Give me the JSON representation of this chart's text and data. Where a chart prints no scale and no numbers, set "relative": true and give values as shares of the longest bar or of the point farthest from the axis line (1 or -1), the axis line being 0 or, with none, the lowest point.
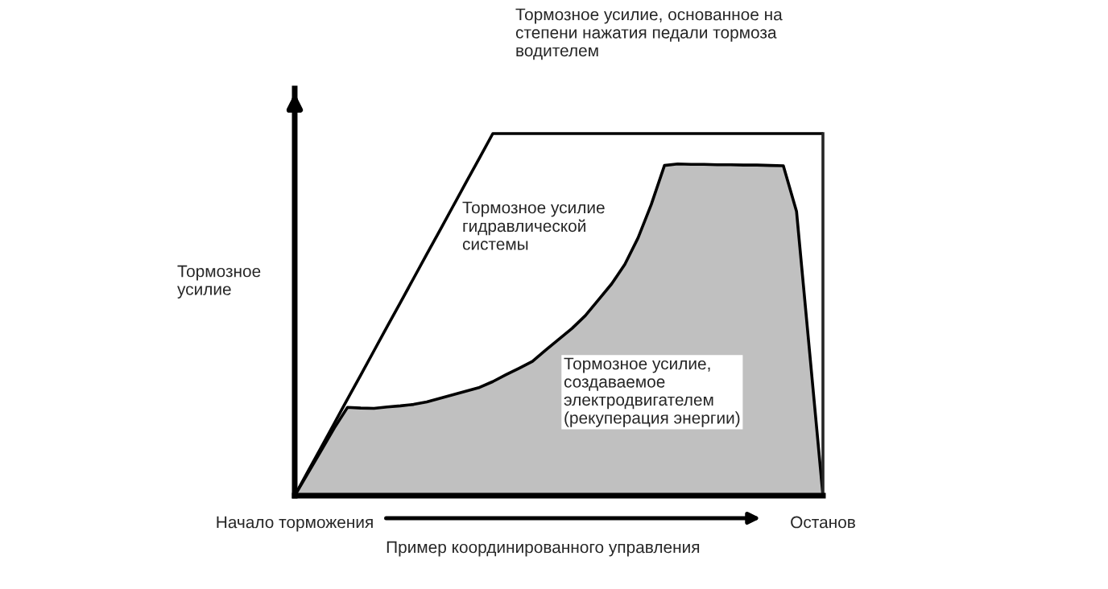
{
  "chart_data": {
    "type": "area",
    "relative": true,
    "ylabel": "Тормозное\nусилие",
    "xlabel": "Пример координированного управления",
    "tick_labels": "x",
    "categories": [
      "Начало торможения",
      null,
      null,
      null,
      null,
      null,
      null,
      null,
      null,
      null,
      null,
      null,
      null,
      null,
      null,
      null,
      null,
      null,
      null,
      null,
      null,
      null,
      null,
      null,
      null,
      null,
      null,
      null,
      null,
      null,
      null,
      null,
      null,
      null,
      null,
      null,
      null,
      null,
      null,
      null,
      "Останов"
    ],
    "series": [
      {
        "type": "line",
        "color": "#000000",
        "values": [
          0,
          0.067,
          0.133,
          0.2,
          0.267,
          0.333,
          0.4,
          0.467,
          0.533,
          0.6,
          0.667,
          0.733,
          0.8,
          0.867,
          0.933,
          1,
          1,
          1,
          1,
          1,
          1,
          1,
          1,
          1,
          1,
          1,
          1,
          1,
          1,
          1,
          1,
          1,
          1,
          1,
          1,
          1,
          1,
          1,
          1,
          1,
          1
        ]
      },
      {
        "color": "#c0c0c0",
        "values": [
          0,
          0.062,
          0.124,
          0.187,
          0.244,
          0.242,
          0.241,
          0.245,
          0.248,
          0.252,
          0.259,
          0.269,
          0.279,
          0.289,
          0.299,
          0.315,
          0.334,
          0.352,
          0.371,
          0.402,
          0.432,
          0.462,
          0.497,
          0.541,
          0.585,
          0.639,
          0.712,
          0.804,
          0.912,
          0.916,
          0.915,
          0.915,
          0.914,
          0.914,
          0.913,
          0.913,
          0.912,
          0.911,
          0.785,
          0.393,
          0
        ]
      }
    ],
    "annotations": [
      "Тормозное усилие, основанное на\nстепени нажатия педали тормоза\nводителем",
      "Тормозное усилие\nгидравлической\nсистемы",
      "Тормозное усилие,\nсоздаваемое\nэлектродвигателем\n(рекуперация энергии)"
    ]
  }
}
